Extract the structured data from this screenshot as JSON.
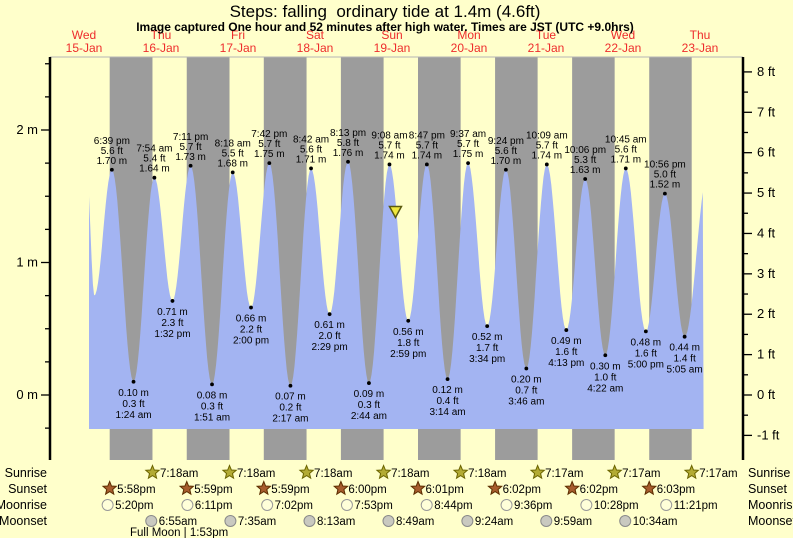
{
  "title": "Steps: falling  ordinary tide at 1.4m (4.6ft)",
  "subtitle": "Image captured One hour and 52 minutes after high water. Times are JST (UTC +9.0hrs)",
  "full_moon_note": "Full Moon | 1:53pm",
  "colors": {
    "page_bg": "#ffffcb",
    "night_band": "#9c9c9c",
    "water": "#a3b4f2",
    "day_label_red": "#ee2c2c",
    "sunrise_star": "#b3ab33",
    "sunset_star": "#a75c2c",
    "moonrise_moon": "#ffffd9",
    "moonset_moon": "#c9c9c0",
    "marker_yellow": "#f0e83e"
  },
  "chart_data": {
    "type": "area",
    "title": "Steps: falling  ordinary tide at 1.4m (4.6ft)",
    "x_unit": "hours since Wed 15-Jan 00:00 JST",
    "ylabel_left": "meters",
    "ylabel_right": "feet",
    "y_range_m": [
      -0.49,
      2.55
    ],
    "days": [
      {
        "name": "Wed",
        "date": "15-Jan"
      },
      {
        "name": "Thu",
        "date": "16-Jan"
      },
      {
        "name": "Fri",
        "date": "17-Jan"
      },
      {
        "name": "Sat",
        "date": "18-Jan"
      },
      {
        "name": "Sun",
        "date": "19-Jan"
      },
      {
        "name": "Mon",
        "date": "20-Jan"
      },
      {
        "name": "Tue",
        "date": "21-Jan"
      },
      {
        "name": "Wed",
        "date": "22-Jan"
      },
      {
        "name": "Thu",
        "date": "23-Jan"
      }
    ],
    "left_ticks": [
      {
        "label": "2 m",
        "m": 2
      },
      {
        "label": "1 m",
        "m": 1
      },
      {
        "label": "0 m",
        "m": 0
      }
    ],
    "right_ticks": [
      {
        "label": "8 ft",
        "ft": 8
      },
      {
        "label": "7 ft",
        "ft": 7
      },
      {
        "label": "6 ft",
        "ft": 6
      },
      {
        "label": "5 ft",
        "ft": 5
      },
      {
        "label": "4 ft",
        "ft": 4
      },
      {
        "label": "3 ft",
        "ft": 3
      },
      {
        "label": "2 ft",
        "ft": 2
      },
      {
        "label": "1 ft",
        "ft": 1
      },
      {
        "label": "0 ft",
        "ft": 0
      },
      {
        "label": "-1 ft",
        "ft": -1
      }
    ],
    "events": [
      {
        "type": "high",
        "t": 10.8,
        "height_m": 1.7,
        "virtual": true
      },
      {
        "type": "low",
        "t": 13.2,
        "height_m": 0.75,
        "virtual": true
      },
      {
        "type": "high",
        "t": 18.65,
        "height_m": 1.7,
        "time": "6:39 pm",
        "ft": "5.6 ft",
        "m": "1.70 m"
      },
      {
        "type": "low",
        "t": 25.4,
        "height_m": 0.1,
        "time": "1:24 am",
        "ft": "0.3 ft",
        "m": "0.10 m"
      },
      {
        "type": "high",
        "t": 31.9,
        "height_m": 1.64,
        "time": "7:54 am",
        "ft": "5.4 ft",
        "m": "1.64 m"
      },
      {
        "type": "low",
        "t": 37.53,
        "height_m": 0.71,
        "time": "1:32 pm",
        "ft": "2.3 ft",
        "m": "0.71 m"
      },
      {
        "type": "high",
        "t": 43.18,
        "height_m": 1.73,
        "time": "7:11 pm",
        "ft": "5.7 ft",
        "m": "1.73 m"
      },
      {
        "type": "low",
        "t": 49.85,
        "height_m": 0.08,
        "time": "1:51 am",
        "ft": "0.3 ft",
        "m": "0.08 m"
      },
      {
        "type": "high",
        "t": 56.3,
        "height_m": 1.68,
        "time": "8:18 am",
        "ft": "5.5 ft",
        "m": "1.68 m"
      },
      {
        "type": "low",
        "t": 62.0,
        "height_m": 0.66,
        "time": "2:00 pm",
        "ft": "2.2 ft",
        "m": "0.66 m"
      },
      {
        "type": "high",
        "t": 67.7,
        "height_m": 1.75,
        "time": "7:42 pm",
        "ft": "5.7 ft",
        "m": "1.75 m"
      },
      {
        "type": "low",
        "t": 74.28,
        "height_m": 0.07,
        "time": "2:17 am",
        "ft": "0.2 ft",
        "m": "0.07 m"
      },
      {
        "type": "high",
        "t": 80.7,
        "height_m": 1.71,
        "time": "8:42 am",
        "ft": "5.6 ft",
        "m": "1.71 m"
      },
      {
        "type": "low",
        "t": 86.48,
        "height_m": 0.61,
        "time": "2:29 pm",
        "ft": "2.0 ft",
        "m": "0.61 m"
      },
      {
        "type": "high",
        "t": 92.22,
        "height_m": 1.76,
        "time": "8:13 pm",
        "ft": "5.8 ft",
        "m": "1.76 m"
      },
      {
        "type": "low",
        "t": 98.73,
        "height_m": 0.09,
        "time": "2:44 am",
        "ft": "0.3 ft",
        "m": "0.09 m"
      },
      {
        "type": "high",
        "t": 105.13,
        "height_m": 1.74,
        "time": "9:08 am",
        "ft": "5.7 ft",
        "m": "1.74 m"
      },
      {
        "type": "low",
        "t": 110.98,
        "height_m": 0.56,
        "time": "2:59 pm",
        "ft": "1.8 ft",
        "m": "0.56 m"
      },
      {
        "type": "high",
        "t": 116.78,
        "height_m": 1.74,
        "time": "8:47 pm",
        "ft": "5.7 ft",
        "m": "1.74 m"
      },
      {
        "type": "low",
        "t": 123.23,
        "height_m": 0.12,
        "time": "3:14 am",
        "ft": "0.4 ft",
        "m": "0.12 m"
      },
      {
        "type": "high",
        "t": 129.62,
        "height_m": 1.75,
        "time": "9:37 am",
        "ft": "5.7 ft",
        "m": "1.75 m"
      },
      {
        "type": "low",
        "t": 135.57,
        "height_m": 0.52,
        "time": "3:34 pm",
        "ft": "1.7 ft",
        "m": "0.52 m"
      },
      {
        "type": "high",
        "t": 141.4,
        "height_m": 1.7,
        "time": "9:24 pm",
        "ft": "5.6 ft",
        "m": "1.70 m"
      },
      {
        "type": "low",
        "t": 147.77,
        "height_m": 0.2,
        "time": "3:46 am",
        "ft": "0.7 ft",
        "m": "0.20 m"
      },
      {
        "type": "high",
        "t": 154.15,
        "height_m": 1.74,
        "time": "10:09 am",
        "ft": "5.7 ft",
        "m": "1.74 m"
      },
      {
        "type": "low",
        "t": 160.22,
        "height_m": 0.49,
        "time": "4:13 pm",
        "ft": "1.6 ft",
        "m": "0.49 m"
      },
      {
        "type": "high",
        "t": 166.1,
        "height_m": 1.63,
        "time": "10:06 pm",
        "ft": "5.3 ft",
        "m": "1.63 m"
      },
      {
        "type": "low",
        "t": 172.37,
        "height_m": 0.3,
        "time": "4:22 am",
        "ft": "1.0 ft",
        "m": "0.30 m"
      },
      {
        "type": "high",
        "t": 178.75,
        "height_m": 1.71,
        "time": "10:45 am",
        "ft": "5.6 ft",
        "m": "1.71 m"
      },
      {
        "type": "low",
        "t": 185.0,
        "height_m": 0.48,
        "time": "5:00 pm",
        "ft": "1.6 ft",
        "m": "0.48 m"
      },
      {
        "type": "high",
        "t": 190.93,
        "height_m": 1.52,
        "time": "10:56 pm",
        "ft": "5.0 ft",
        "m": "1.52 m"
      },
      {
        "type": "low",
        "t": 197.08,
        "height_m": 0.44,
        "time": "5:05 am",
        "ft": "1.4 ft",
        "m": "0.44 m"
      },
      {
        "type": "high",
        "t": 204.5,
        "height_m": 1.7,
        "virtual": true
      }
    ],
    "marker": {
      "t": 107.0,
      "height_m": 1.37
    }
  },
  "astro": {
    "sunrise": {
      "label": "Sunrise",
      "entries": [
        {
          "time": "7:18am",
          "t": 31.3
        },
        {
          "time": "7:18am",
          "t": 55.3
        },
        {
          "time": "7:18am",
          "t": 79.3
        },
        {
          "time": "7:18am",
          "t": 103.3
        },
        {
          "time": "7:18am",
          "t": 127.3
        },
        {
          "time": "7:17am",
          "t": 151.28
        },
        {
          "time": "7:17am",
          "t": 175.28
        },
        {
          "time": "7:17am",
          "t": 199.28
        }
      ]
    },
    "sunset": {
      "label": "Sunset",
      "entries": [
        {
          "time": "5:58pm",
          "t": 17.97
        },
        {
          "time": "5:59pm",
          "t": 41.98
        },
        {
          "time": "5:59pm",
          "t": 65.98
        },
        {
          "time": "6:00pm",
          "t": 90.0
        },
        {
          "time": "6:01pm",
          "t": 114.02
        },
        {
          "time": "6:02pm",
          "t": 138.03
        },
        {
          "time": "6:02pm",
          "t": 162.03
        },
        {
          "time": "6:03pm",
          "t": 186.05
        }
      ]
    },
    "moonrise": {
      "label": "Moonrise",
      "entries": [
        {
          "time": "5:20pm",
          "t": 17.33
        },
        {
          "time": "6:11pm",
          "t": 42.18
        },
        {
          "time": "7:02pm",
          "t": 67.03
        },
        {
          "time": "7:53pm",
          "t": 91.88
        },
        {
          "time": "8:44pm",
          "t": 116.73
        },
        {
          "time": "9:36pm",
          "t": 141.6
        },
        {
          "time": "10:28pm",
          "t": 166.47
        },
        {
          "time": "11:21pm",
          "t": 191.35
        }
      ]
    },
    "moonset": {
      "label": "Moonset",
      "entries": [
        {
          "time": "6:55am",
          "t": 30.92
        },
        {
          "time": "7:35am",
          "t": 55.58
        },
        {
          "time": "8:13am",
          "t": 80.22
        },
        {
          "time": "8:49am",
          "t": 104.82
        },
        {
          "time": "9:24am",
          "t": 129.4
        },
        {
          "time": "9:59am",
          "t": 153.98
        },
        {
          "time": "10:34am",
          "t": 178.57
        }
      ]
    }
  }
}
